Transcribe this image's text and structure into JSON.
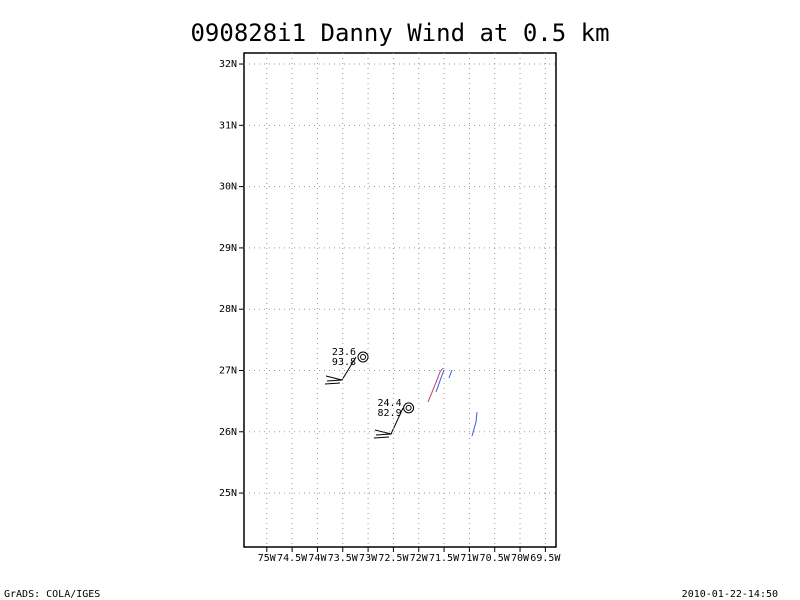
{
  "chart_data": {
    "type": "scatter",
    "title": "090828i1 Danny Wind at 0.5 km",
    "x": [
      -73.1,
      -72.2
    ],
    "y": [
      27.22,
      26.39
    ],
    "point_labels": [
      [
        "23.6",
        "93.8"
      ],
      [
        "24.4",
        "82.9"
      ]
    ],
    "xlim": [
      -75.45,
      -69.29
    ],
    "ylim": [
      24.12,
      32.18
    ],
    "xticks": [
      {
        "value": -75,
        "label": "75W"
      },
      {
        "value": -74.5,
        "label": "74.5W"
      },
      {
        "value": -74,
        "label": "74W"
      },
      {
        "value": -73.5,
        "label": "73.5W"
      },
      {
        "value": -73,
        "label": "73W"
      },
      {
        "value": -72.5,
        "label": "72.5W"
      },
      {
        "value": -72,
        "label": "72W"
      },
      {
        "value": -71.5,
        "label": "71.5W"
      },
      {
        "value": -71,
        "label": "71W"
      },
      {
        "value": -70.5,
        "label": "70.5W"
      },
      {
        "value": -70,
        "label": "70W"
      },
      {
        "value": -69.5,
        "label": "69.5W"
      }
    ],
    "yticks": [
      {
        "value": 25,
        "label": "25N"
      },
      {
        "value": 26,
        "label": "26N"
      },
      {
        "value": 27,
        "label": "27N"
      },
      {
        "value": 28,
        "label": "28N"
      },
      {
        "value": 29,
        "label": "29N"
      },
      {
        "value": 30,
        "label": "30N"
      },
      {
        "value": 31,
        "label": "31N"
      },
      {
        "value": 32,
        "label": "32N"
      }
    ],
    "grid": true,
    "footer_left": "GrADS: COLA/IGES",
    "footer_right": "2010-01-22-14:50"
  }
}
